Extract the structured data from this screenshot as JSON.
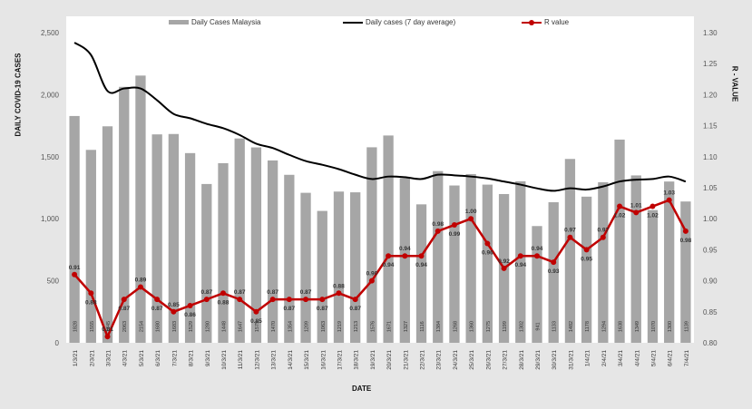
{
  "legend": {
    "bars": "Daily Cases Malaysia",
    "line": "Daily cases (7 day average)",
    "r": "R value"
  },
  "axes": {
    "left_title": "DAILY COVID-19 CASES",
    "right_title": "R - VALUE",
    "x_title": "DATE",
    "left_ticks": [
      "0",
      "500",
      "1,000",
      "1,500",
      "2,000",
      "2,500"
    ],
    "right_ticks": [
      "0.80",
      "0.85",
      "0.90",
      "0.95",
      "1.00",
      "1.05",
      "1.10",
      "1.15",
      "1.20",
      "1.25",
      "1.30"
    ]
  },
  "colors": {
    "bar": "#a6a6a6",
    "avg_line": "#000000",
    "r_line": "#c00000",
    "plot_bg": "#ffffff",
    "page_bg": "#e6e6e6"
  },
  "chart_data": {
    "type": "bar",
    "title": "",
    "xlabel": "DATE",
    "ylabel": "DAILY COVID-19 CASES",
    "y2label": "R - VALUE",
    "ylim": [
      0,
      2500
    ],
    "y2lim": [
      0.8,
      1.3
    ],
    "grid": false,
    "legend_position": "top",
    "categories": [
      "1/3/21",
      "2/3/21",
      "3/3/21",
      "4/3/21",
      "5/3/21",
      "6/3/21",
      "7/3/21",
      "8/3/21",
      "9/3/21",
      "10/3/21",
      "11/3/21",
      "12/3/21",
      "13/3/21",
      "14/3/21",
      "15/3/21",
      "16/3/21",
      "17/3/21",
      "18/3/21",
      "19/3/21",
      "20/3/21",
      "21/3/21",
      "22/3/21",
      "23/3/21",
      "24/3/21",
      "25/3/21",
      "26/3/21",
      "27/3/21",
      "28/3/21",
      "29/3/21",
      "30/3/21",
      "31/3/21",
      "1/4/21",
      "2/4/21",
      "3/4/21",
      "4/4/21",
      "5/4/21",
      "6/4/21",
      "7/4/21"
    ],
    "series": [
      {
        "name": "Daily Cases Malaysia",
        "type": "bar",
        "axis": "left",
        "values": [
          1828,
          1555,
          1745,
          2063,
          2154,
          1680,
          1683,
          1529,
          1280,
          1448,
          1647,
          1575,
          1470,
          1354,
          1209,
          1063,
          1219,
          1213,
          1576,
          1671,
          1327,
          1116,
          1384,
          1268,
          1360,
          1275,
          1199,
          1302,
          941,
          1133,
          1482,
          1178,
          1294,
          1638,
          1349,
          1070,
          1300,
          1139
        ]
      },
      {
        "name": "Daily cases (7 day average)",
        "type": "line",
        "axis": "left",
        "values": [
          2420,
          2320,
          2030,
          2050,
          2050,
          1955,
          1845,
          1810,
          1765,
          1730,
          1675,
          1605,
          1570,
          1515,
          1465,
          1435,
          1400,
          1355,
          1320,
          1340,
          1335,
          1320,
          1355,
          1350,
          1340,
          1325,
          1300,
          1275,
          1245,
          1225,
          1245,
          1235,
          1260,
          1300,
          1315,
          1320,
          1340,
          1300
        ]
      },
      {
        "name": "R value",
        "type": "line",
        "axis": "right",
        "values": [
          0.91,
          0.88,
          0.81,
          0.87,
          0.89,
          0.87,
          0.85,
          0.86,
          0.87,
          0.88,
          0.87,
          0.85,
          0.87,
          0.87,
          0.87,
          0.87,
          0.88,
          0.87,
          0.9,
          0.94,
          0.94,
          0.94,
          0.98,
          0.99,
          1.0,
          0.96,
          0.92,
          0.94,
          0.94,
          0.93,
          0.97,
          0.95,
          0.97,
          1.02,
          1.01,
          1.02,
          1.03,
          0.98
        ]
      }
    ]
  }
}
